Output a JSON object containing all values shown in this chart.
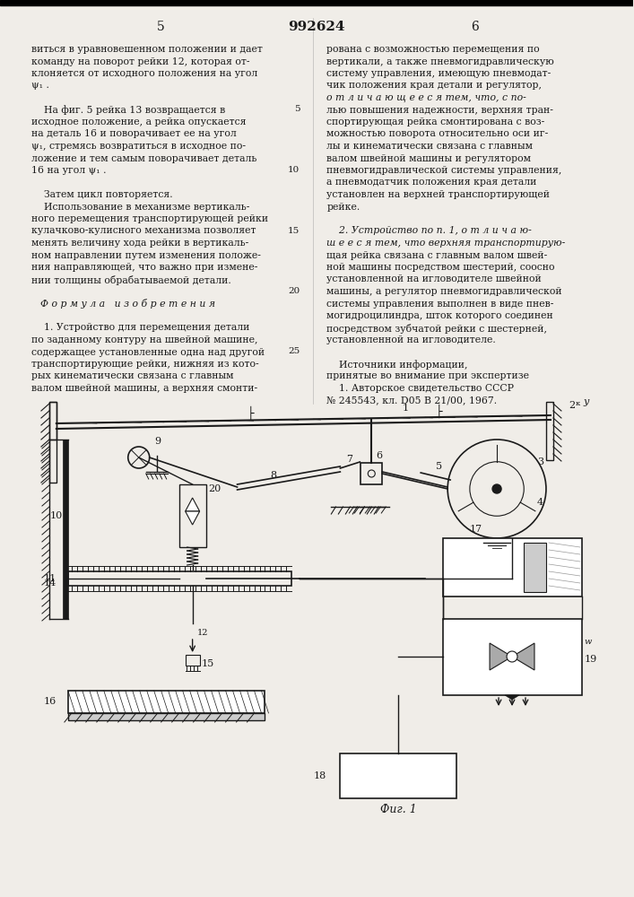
{
  "page_number_left": "5",
  "page_number_center": "992624",
  "page_number_right": "6",
  "left_column_text": [
    "виться в уравновешенном положении и дает",
    "команду на поворот рейки 12, которая от-",
    "клоняется от исходного положения на угол",
    "ψ₁ .",
    "",
    "    На фиг. 5 рейка 13 возвращается в",
    "исходное положение, а рейка опускается",
    "на деталь 16 и поворачивает ее на угол",
    "ψ₁, стремясь возвратиться в исходное по-",
    "ложение и тем самым поворачивает деталь",
    "16 на угол ψ₁ .",
    "",
    "    Затем цикл повторяется.",
    "    Использование в механизме вертикаль-",
    "ного перемещения транспортирующей рейки",
    "кулачково-кулисного механизма позволяет",
    "менять величину хода рейки в вертикаль-",
    "ном направлении путем изменения положе-",
    "ния направляющей, что важно при измене-",
    "нии толщины обрабатываемой детали.",
    "",
    "Ф о р м у л а   и з о б р е т е н и я",
    "",
    "    1. Устройство для перемещения детали",
    "по заданному контуру на швейной машине,",
    "содержащее установленные одна над другой",
    "транспортирующие рейки, нижняя из кото-",
    "рых кинематически связана с главным",
    "валом швейной машины, а верхняя смонти-"
  ],
  "right_column_text": [
    "рована с возможностью перемещения по",
    "вертикали, а также пневмогидравлическую",
    "систему управления, имеющую пневмодат-",
    "чик положения края детали и регулятор,",
    "о т л и ч а ю щ е е с я тем, что, с по-",
    "лью повышения надежности, верхняя тран-",
    "спортирующая рейка смонтирована с воз-",
    "можностью поворота относительно оси иг-",
    "лы и кинематически связана с главным",
    "валом швейной машины и регулятором",
    "пневмогидравлической системы управления,",
    "а пневмодатчик положения края детали",
    "установлен на верхней транспортирующей",
    "рейке.",
    "",
    "    2. Устройство по п. 1, о т л и ч а ю-",
    "ш е е с я тем, что верхняя транспортирую-",
    "щая рейка связана с главным валом швей-",
    "ной машины посредством шестерий, соосно",
    "установленной на игловодителе швейной",
    "машины, а регулятор пневмогидравлической",
    "системы управления выполнен в виде пнев-",
    "могидроцилиндра, шток которого соединен",
    "посредством зубчатой рейки с шестерней,",
    "установленной на игловодителе.",
    "",
    "    Источники информации,",
    "принятые во внимание при экспертизе",
    "    1. Авторское свидетельство СССР",
    "№ 245543, кл. D05 B 21/00, 1967."
  ],
  "fig_label": "Фиг. 1",
  "bg_color": "#f0ede8",
  "text_color": "#1a1a1a",
  "line_numbers": [
    "5",
    "10",
    "15",
    "20",
    "25"
  ]
}
